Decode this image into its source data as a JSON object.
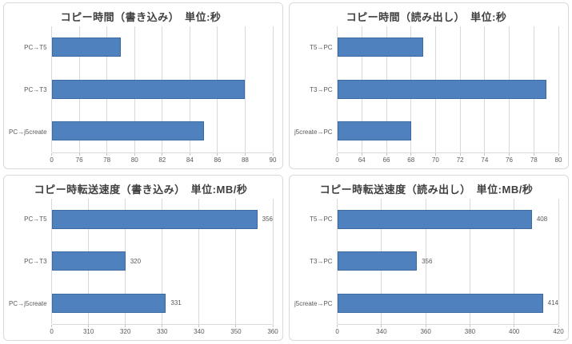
{
  "style": {
    "background": "#FFFFFF",
    "panel_border": "#D9D9D9",
    "title_color": "#3F3F3F",
    "bar_fill": "#4E81BD",
    "bar_border": "#3B6AA0",
    "gridline": "#D9D9D9",
    "axis_line": "#D9D9D9",
    "tick_mark": "#C5C5C5",
    "axis_text": "#595959",
    "value_label_color": "#595959"
  },
  "chart_data": [
    {
      "type": "bar",
      "orientation": "horizontal",
      "title": "コピー時間（書き込み）　単位:秒",
      "categories": [
        "PC→T5",
        "PC→T3",
        "PC→j5create"
      ],
      "values": [
        79,
        88,
        85
      ],
      "xlim": [
        74,
        90
      ],
      "tick_labels": [
        "0",
        "76",
        "78",
        "80",
        "82",
        "84",
        "86",
        "88",
        "90"
      ],
      "show_value_labels": false,
      "value_labels": [],
      "grid": true,
      "legend": "none"
    },
    {
      "type": "bar",
      "orientation": "horizontal",
      "title": "コピー時間（読み出し）　単位:秒",
      "categories": [
        "T5→PC",
        "T3→PC",
        "j5create→PC"
      ],
      "values": [
        69,
        79,
        68
      ],
      "xlim": [
        62,
        80
      ],
      "tick_labels": [
        "0",
        "64",
        "66",
        "68",
        "70",
        "72",
        "74",
        "76",
        "78",
        "80"
      ],
      "show_value_labels": false,
      "value_labels": [],
      "grid": true,
      "legend": "none"
    },
    {
      "type": "bar",
      "orientation": "horizontal",
      "title": "コピー時転送速度（書き込み）　単位:MB/秒",
      "categories": [
        "PC→T5",
        "PC→T3",
        "PC→j5create"
      ],
      "values": [
        356,
        320,
        331
      ],
      "xlim": [
        300,
        360
      ],
      "tick_labels": [
        "0",
        "310",
        "320",
        "330",
        "340",
        "350",
        "360"
      ],
      "show_value_labels": true,
      "value_labels": [
        "356",
        "320",
        "331"
      ],
      "grid": true,
      "legend": "none"
    },
    {
      "type": "bar",
      "orientation": "horizontal",
      "title": "コピー時転送速度（読み出し）　単位:MB/秒",
      "categories": [
        "T5→PC",
        "T3→PC",
        "j5create→PC"
      ],
      "values": [
        408,
        356,
        414
      ],
      "xlim": [
        320,
        420
      ],
      "tick_labels": [
        "0",
        "340",
        "360",
        "380",
        "400",
        "420"
      ],
      "show_value_labels": true,
      "value_labels": [
        "408",
        "356",
        "414"
      ],
      "grid": true,
      "legend": "none"
    }
  ]
}
